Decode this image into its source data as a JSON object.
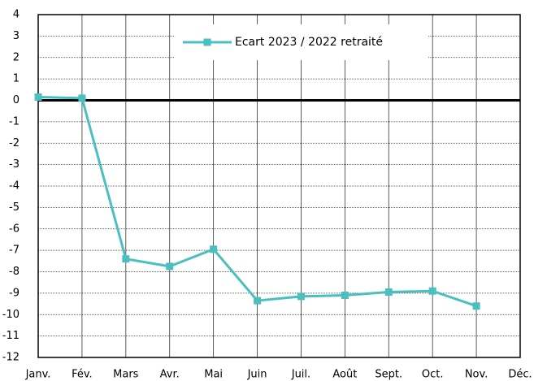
{
  "chart_data": {
    "type": "line",
    "categories": [
      "Janv.",
      "Fév.",
      "Mars",
      "Avr.",
      "Mai",
      "Juin",
      "Juil.",
      "Août",
      "Sept.",
      "Oct.",
      "Nov.",
      "Déc."
    ],
    "series": [
      {
        "name": "Ecart 2023 / 2022 retraité",
        "color": "#4bbfbf",
        "values": [
          0.15,
          0.1,
          -7.4,
          -7.75,
          -6.95,
          -9.35,
          -9.15,
          -9.1,
          -8.95,
          -8.9,
          -9.6,
          null
        ]
      }
    ],
    "ylim": [
      -12,
      4
    ],
    "yticks": [
      -12,
      -11,
      -10,
      -9,
      -8,
      -7,
      -6,
      -5,
      -4,
      -3,
      -2,
      -1,
      0,
      1,
      2,
      3,
      4
    ],
    "grid": true,
    "zero_line": true,
    "legend": "top"
  }
}
